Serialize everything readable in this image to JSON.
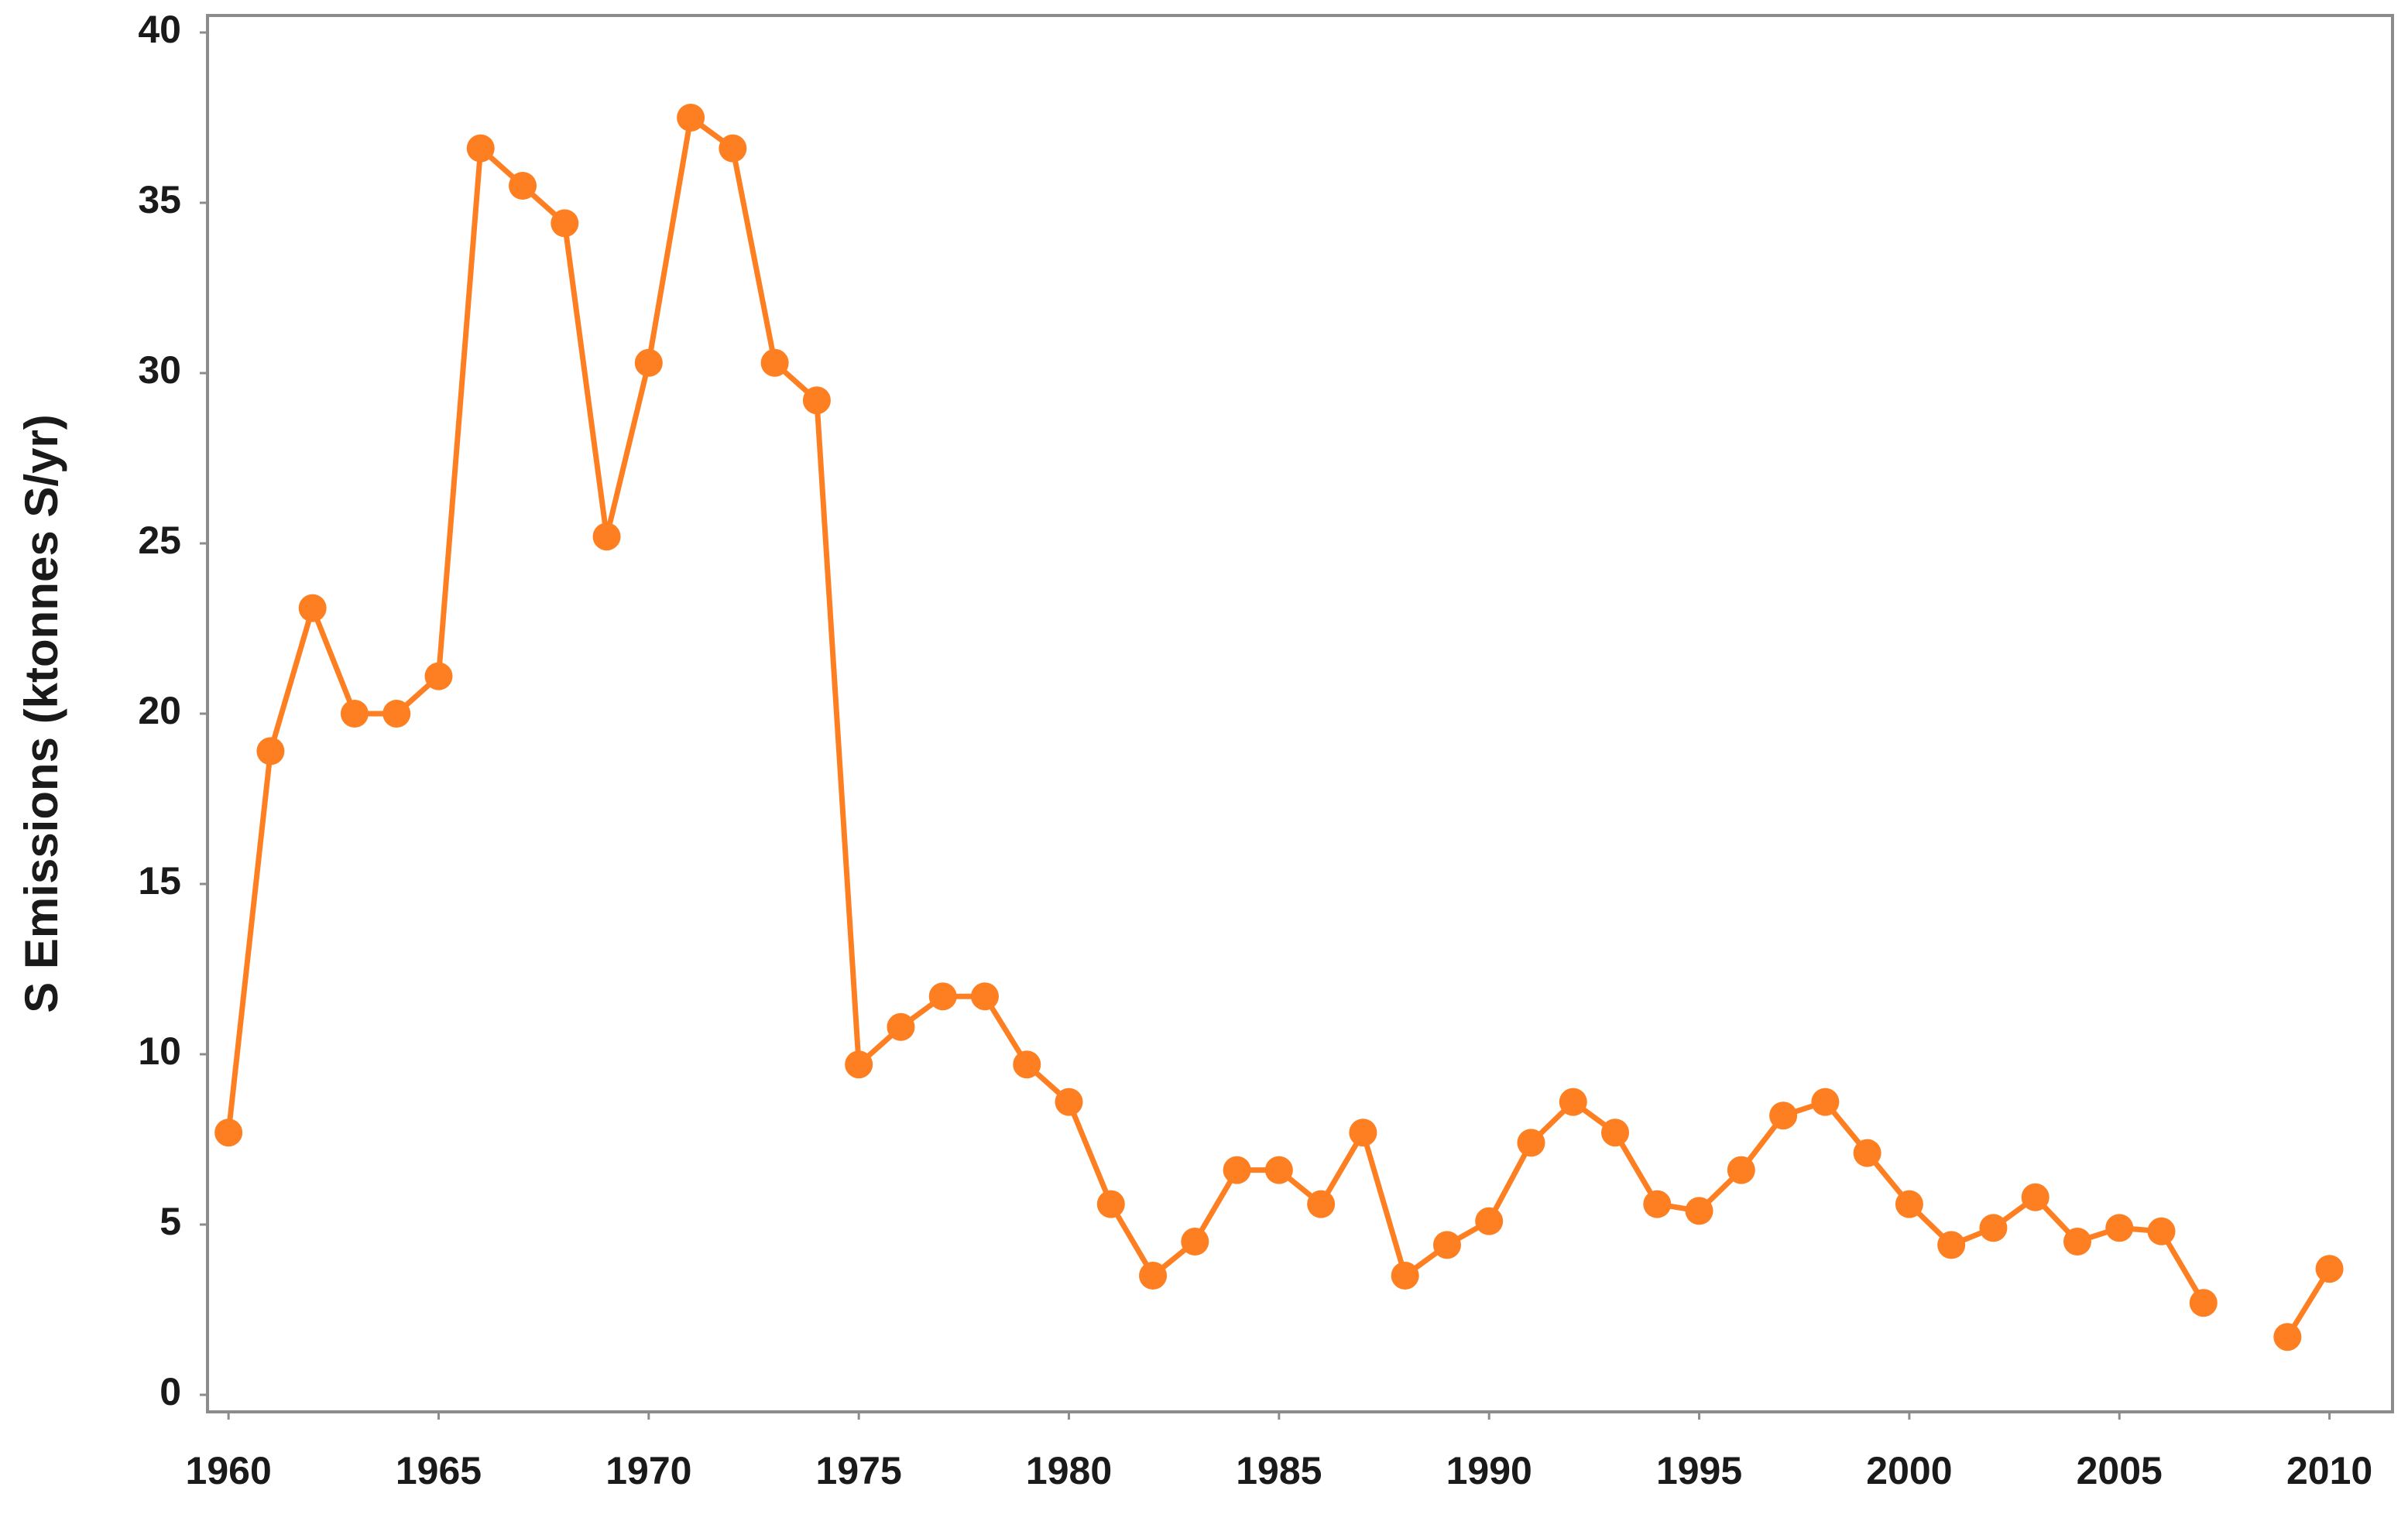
{
  "chart_data": {
    "type": "line",
    "y_label": "S Emissions (ktonnes S/yr)",
    "x": [
      1960,
      1961,
      1962,
      1963,
      1964,
      1965,
      1966,
      1967,
      1968,
      1969,
      1970,
      1971,
      1972,
      1973,
      1974,
      1975,
      1976,
      1977,
      1978,
      1979,
      1980,
      1981,
      1982,
      1983,
      1984,
      1985,
      1986,
      1987,
      1988,
      1989,
      1990,
      1991,
      1992,
      1993,
      1994,
      1995,
      1996,
      1997,
      1998,
      1999,
      2000,
      2001,
      2002,
      2003,
      2004,
      2005,
      2006,
      2007,
      2008,
      2009,
      2010
    ],
    "values": [
      7.7,
      18.9,
      23.1,
      20.0,
      20.0,
      21.1,
      36.6,
      35.5,
      34.4,
      25.2,
      30.3,
      37.5,
      36.6,
      30.3,
      29.2,
      9.7,
      10.8,
      11.7,
      11.7,
      9.7,
      8.6,
      5.6,
      3.5,
      4.5,
      6.6,
      6.6,
      5.6,
      7.7,
      3.5,
      4.4,
      5.1,
      7.4,
      8.6,
      7.7,
      5.6,
      5.4,
      6.6,
      8.2,
      8.6,
      7.1,
      5.6,
      4.4,
      4.9,
      5.8,
      4.5,
      4.9,
      4.8,
      2.7,
      null,
      1.7,
      3.7
    ],
    "color": "#fd7f22",
    "xlim": [
      1959.5,
      2011.5
    ],
    "xticks": [
      1960,
      1965,
      1970,
      1975,
      1980,
      1985,
      1990,
      1995,
      2000,
      2005,
      2010
    ],
    "ylim": [
      -0.5,
      40.5
    ],
    "yticks": [
      0,
      5,
      10,
      15,
      20,
      25,
      30,
      35,
      40
    ],
    "grid": false
  }
}
